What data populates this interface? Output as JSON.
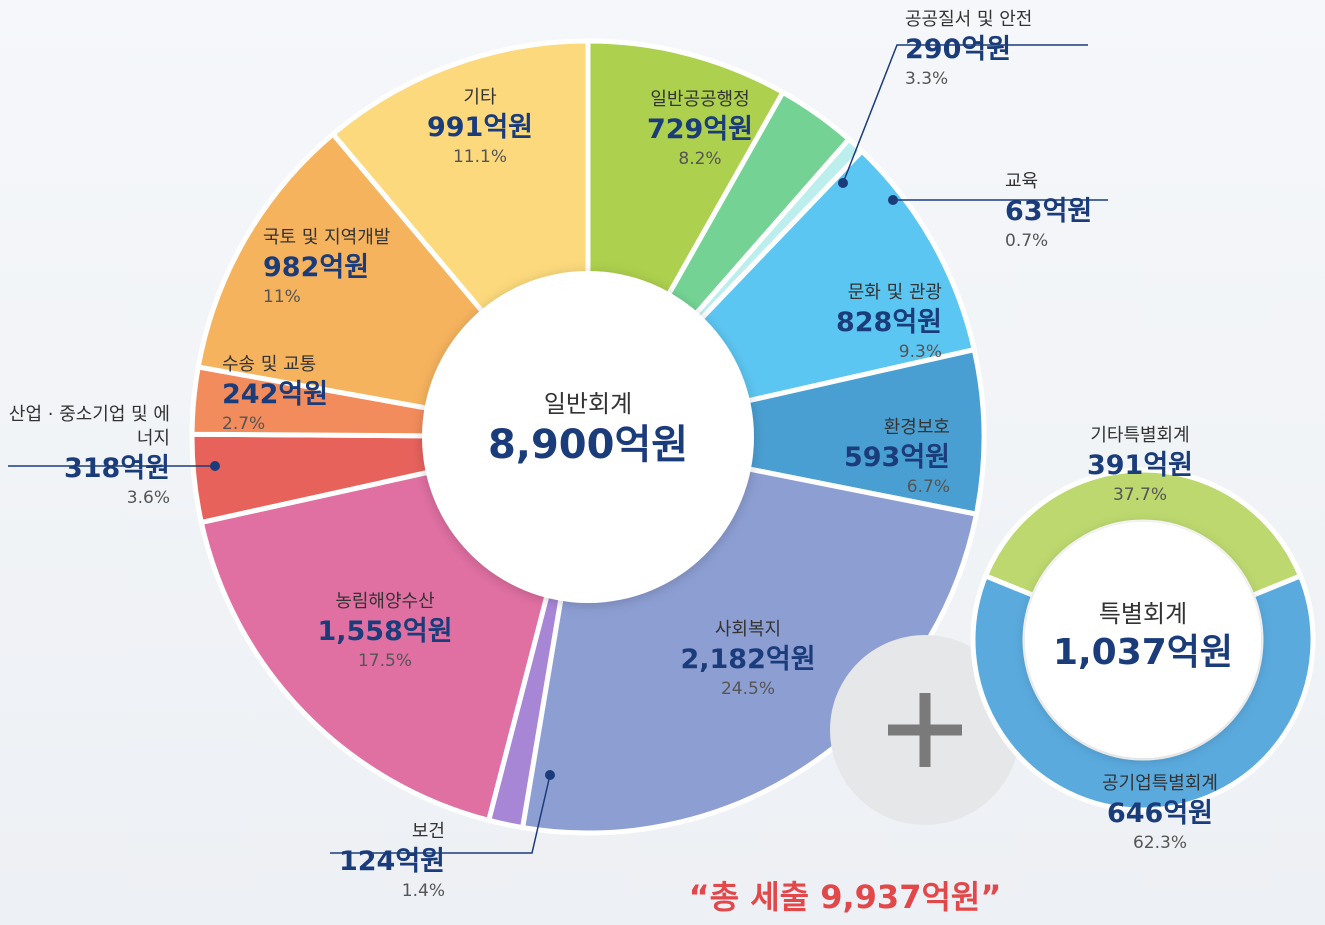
{
  "chart_data": [
    {
      "type": "donut",
      "title": "일반회계",
      "total": 8900,
      "total_label": "8,900억원",
      "categories": [
        "일반공공행정",
        "공공질서 및 안전",
        "교육",
        "문화 및 관광",
        "환경보호",
        "사회복지",
        "보건",
        "농림해양수산",
        "산업 · 중소기업 및 에너지",
        "수송 및 교통",
        "국토 및 지역개발",
        "기타"
      ],
      "values": [
        729,
        290,
        63,
        828,
        593,
        2182,
        124,
        1558,
        318,
        242,
        982,
        991
      ],
      "value_labels": [
        "729억원",
        "290억원",
        "63억원",
        "828억원",
        "593억원",
        "2,182억원",
        "124억원",
        "1,558억원",
        "318억원",
        "242억원",
        "982억원",
        "991억원"
      ],
      "shares": [
        8.2,
        3.3,
        0.7,
        9.3,
        6.7,
        24.5,
        1.4,
        17.5,
        3.6,
        2.7,
        11,
        11.1
      ],
      "share_labels": [
        "8.2%",
        "3.3%",
        "0.7%",
        "9.3%",
        "6.7%",
        "24.5%",
        "1.4%",
        "17.5%",
        "3.6%",
        "2.7%",
        "11%",
        "11.1%"
      ],
      "colors": [
        "#add04e",
        "#74d394",
        "#bdeeee",
        "#5cc6f2",
        "#4a9fd2",
        "#8d9ed3",
        "#a886d6",
        "#e070a2",
        "#e8625c",
        "#f38c5c",
        "#f6b35e",
        "#fcd97c"
      ]
    },
    {
      "type": "donut",
      "title": "특별회계",
      "total": 1037,
      "total_label": "1,037억원",
      "categories": [
        "기타특별회계",
        "공기업특별회계"
      ],
      "values": [
        391,
        646
      ],
      "value_labels": [
        "391억원",
        "646억원"
      ],
      "shares": [
        37.7,
        62.3
      ],
      "share_labels": [
        "37.7%",
        "62.3%"
      ],
      "colors": [
        "#bcd86e",
        "#5aaade"
      ]
    }
  ],
  "annotation": "“총 세출 9,937억원”"
}
